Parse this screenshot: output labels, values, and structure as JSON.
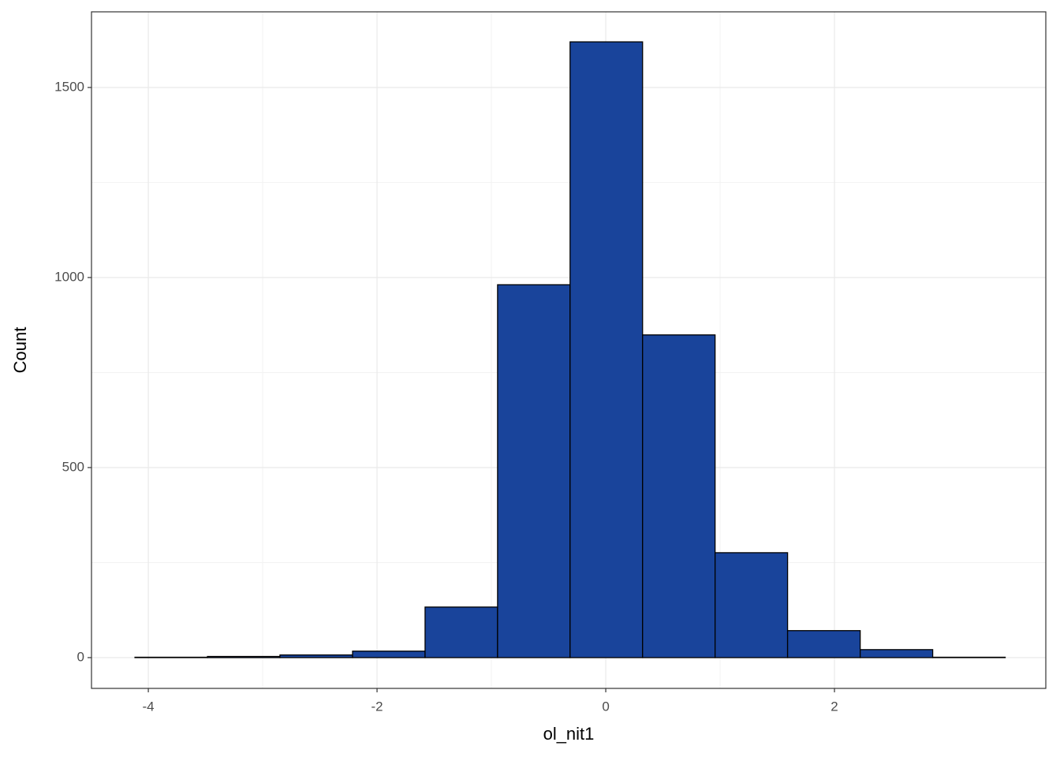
{
  "chart_data": {
    "type": "histogram",
    "x_label": "ol_nit1",
    "y_label": "Count",
    "bins": [
      -4.117,
      -3.483,
      -2.849,
      -2.214,
      -1.58,
      -0.946,
      -0.312,
      0.322,
      0.956,
      1.59,
      2.225,
      2.859,
      3.493
    ],
    "values": [
      1,
      3,
      7,
      17,
      133,
      981,
      1620,
      849,
      276,
      71,
      21,
      1
    ],
    "color": "#19449b",
    "xlim": [
      -4.497,
      3.848
    ],
    "xticks": [
      -4,
      -2,
      0,
      2
    ],
    "ylim": [
      -81,
      1699
    ],
    "yticks": [
      0,
      500,
      1000,
      1500
    ],
    "grid": true
  }
}
